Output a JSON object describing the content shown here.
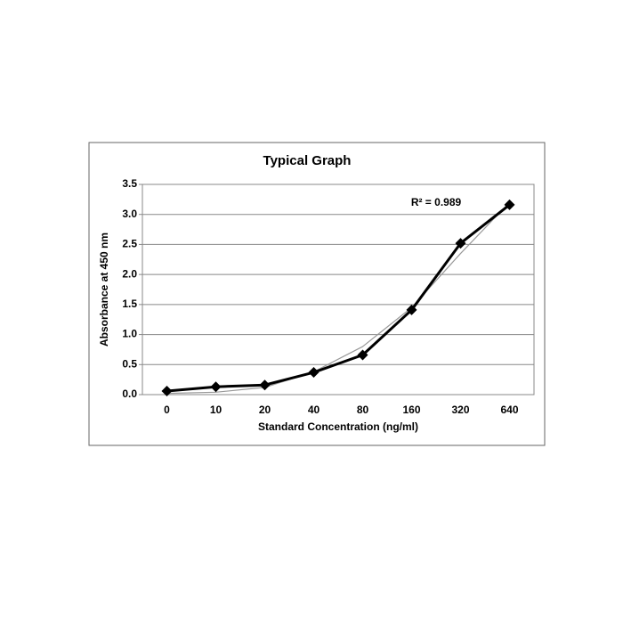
{
  "chart_data": {
    "type": "line",
    "title": "Typical Graph",
    "x_label": "Standard Concentration (ng/ml)",
    "y_label": "Absorbance at 450 nm",
    "annotation": "R² = 0.989",
    "categories": [
      "0",
      "10",
      "20",
      "40",
      "80",
      "160",
      "320",
      "640"
    ],
    "series": [
      {
        "color": "#000000",
        "values": [
          0.06,
          0.13,
          0.16,
          0.37,
          0.66,
          1.41,
          2.52,
          3.16
        ]
      },
      {
        "color": "#999999",
        "values": [
          0.02,
          0.04,
          0.12,
          0.38,
          0.8,
          1.45,
          2.35,
          3.2
        ]
      }
    ],
    "ylim": [
      0,
      3.5
    ],
    "yticks": [
      {
        "value": 0,
        "label": "0.0"
      },
      0.5,
      {
        "value": 1,
        "label": "1.0"
      },
      1.5,
      {
        "value": 2,
        "label": "2.0"
      },
      2.5,
      {
        "value": 3,
        "label": "3.0"
      },
      3.5
    ],
    "grid": true
  }
}
